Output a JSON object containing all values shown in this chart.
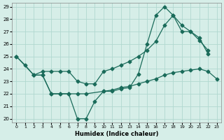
{
  "xlabel": "Humidex (Indice chaleur)",
  "background_color": "#d6eee8",
  "grid_color": "#b0d8d0",
  "line_color": "#1a6b5a",
  "xlim": [
    -0.5,
    23.5
  ],
  "ylim": [
    19.7,
    29.3
  ],
  "xticks": [
    0,
    1,
    2,
    3,
    4,
    5,
    6,
    7,
    8,
    9,
    10,
    11,
    12,
    13,
    14,
    15,
    16,
    17,
    18,
    19,
    20,
    21,
    22,
    23
  ],
  "yticks": [
    20,
    21,
    22,
    23,
    24,
    25,
    26,
    27,
    28,
    29
  ],
  "curve1_x": [
    0,
    1,
    2,
    3,
    4,
    5,
    6,
    7,
    8,
    9,
    10,
    11,
    12,
    13,
    14,
    15,
    16,
    17,
    18,
    19,
    20,
    21,
    22
  ],
  "curve1_y": [
    25.0,
    24.3,
    23.5,
    23.5,
    22.0,
    22.0,
    22.0,
    20.0,
    20.0,
    21.4,
    22.2,
    22.2,
    22.4,
    22.5,
    23.6,
    26.0,
    28.3,
    29.0,
    28.3,
    27.0,
    27.0,
    26.5,
    25.2
  ],
  "curve2_x": [
    2,
    3,
    4,
    5,
    6,
    7,
    8,
    10,
    11,
    12,
    13,
    14,
    15,
    16,
    17,
    18,
    19,
    20,
    21,
    22,
    23
  ],
  "curve2_y": [
    23.5,
    23.5,
    22.0,
    22.0,
    22.0,
    22.0,
    22.0,
    22.2,
    22.3,
    22.5,
    22.6,
    22.8,
    23.0,
    23.2,
    23.5,
    23.7,
    23.8,
    23.9,
    24.0,
    23.8,
    23.2
  ],
  "curve3_x": [
    0,
    2,
    3,
    4,
    5,
    6,
    7,
    8,
    9,
    10,
    11,
    12,
    13,
    14,
    15,
    16,
    17,
    18,
    19,
    20,
    21,
    22
  ],
  "curve3_y": [
    25.0,
    23.5,
    23.8,
    23.8,
    23.8,
    23.8,
    23.0,
    22.8,
    22.8,
    23.8,
    24.0,
    24.3,
    24.6,
    25.0,
    25.5,
    26.2,
    27.5,
    28.3,
    27.5,
    27.0,
    26.3,
    25.5
  ]
}
